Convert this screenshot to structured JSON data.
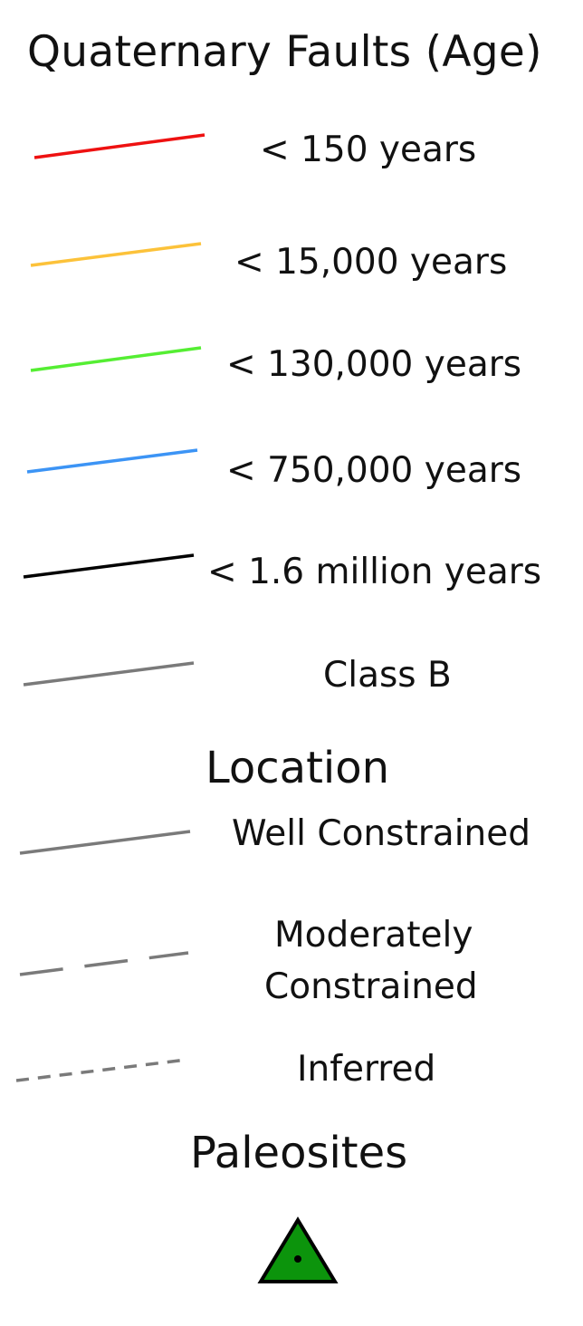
{
  "legend": {
    "title": "Quaternary Faults (Age)",
    "age_items": [
      {
        "label": "<  150 years",
        "color": "#ee1111",
        "style": "solid"
      },
      {
        "label": "<  15,000 years",
        "color": "#fcc23a",
        "style": "solid"
      },
      {
        "label": "<  130,000 years",
        "color": "#55ee33",
        "style": "solid"
      },
      {
        "label": "<  750,000 years",
        "color": "#3c94f5",
        "style": "solid"
      },
      {
        "label": "<  1.6 million years",
        "color": "#000000",
        "style": "solid"
      },
      {
        "label": "Class B",
        "color": "#7a7a7a",
        "style": "solid"
      }
    ],
    "location": {
      "heading": "Location",
      "items": [
        {
          "label": "Well Constrained",
          "color": "#7a7a7a",
          "style": "solid"
        },
        {
          "label_line1": "Moderately",
          "label_line2": "Constrained",
          "color": "#7a7a7a",
          "style": "dashed"
        },
        {
          "label": "Inferred",
          "color": "#7a7a7a",
          "style": "dotted"
        }
      ]
    },
    "paleosites": {
      "heading": "Paleosites",
      "symbol": "green-triangle-with-dot",
      "fill_color": "#0c940c",
      "outline_color": "#000000"
    }
  }
}
